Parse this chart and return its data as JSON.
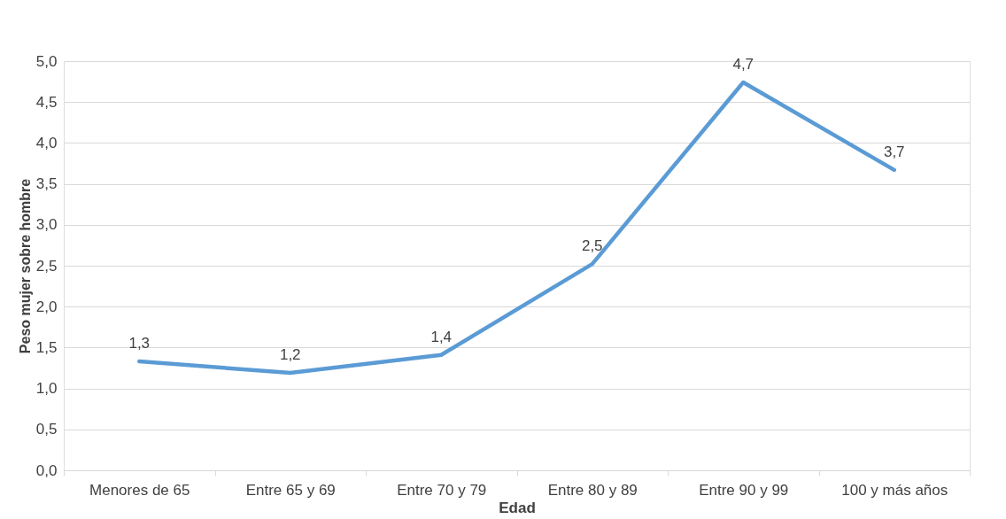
{
  "chart_data": {
    "type": "line",
    "xlabel": "Edad",
    "ylabel": "Peso mujer sobre hombre",
    "categories": [
      "Menores de 65",
      "Entre 65 y 69",
      "Entre 70 y 79",
      "Entre 80 y 89",
      "Entre 90 y 99",
      "100 y más años"
    ],
    "series": [
      {
        "color": "#5b9bd5",
        "values": [
          1.33,
          1.19,
          1.41,
          2.52,
          4.74,
          3.67
        ],
        "value_labels": [
          "1,3",
          "1,2",
          "1,4",
          "2,5",
          "4,7",
          "3,7"
        ]
      }
    ],
    "ylim": [
      0,
      5
    ],
    "yticks": [
      {
        "value": 0,
        "label": "0,0"
      },
      {
        "value": 0.5,
        "label": "0,5"
      },
      {
        "value": 1,
        "label": "1,0"
      },
      {
        "value": 1.5,
        "label": "1,5"
      },
      {
        "value": 2,
        "label": "2,0"
      },
      {
        "value": 2.5,
        "label": "2,5"
      },
      {
        "value": 3,
        "label": "3,0"
      },
      {
        "value": 3.5,
        "label": "3,5"
      },
      {
        "value": 4,
        "label": "4,0"
      },
      {
        "value": 4.5,
        "label": "4,5"
      },
      {
        "value": 5,
        "label": "5,0"
      }
    ],
    "grid": "y",
    "marker": "none",
    "line_style": "solid"
  }
}
